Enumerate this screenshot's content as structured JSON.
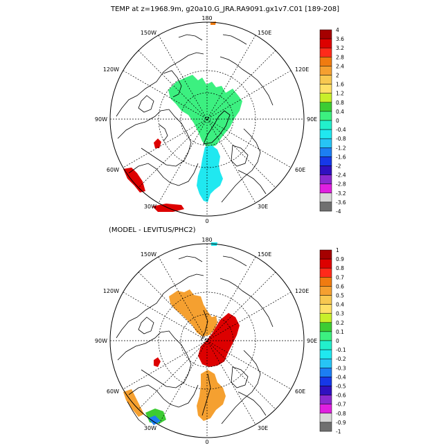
{
  "panels": [
    {
      "title": "TEMP at z=1968.9m, g20a10.G_JRA.RA9091.gx1v7.C01 [189-208]",
      "longitude_labels": {
        "top": "180",
        "bottom": "0",
        "left": "90W",
        "right": "90E",
        "upper_left_outer": "150W",
        "upper_left_inner": "120W",
        "upper_right_outer": "150E",
        "upper_right_inner": "120E",
        "lower_left_inner": "60W",
        "lower_left_outer": "30W",
        "lower_right_inner": "60E",
        "lower_right_outer": "30E"
      },
      "colorbar": {
        "labels": [
          "4",
          "3.6",
          "3.2",
          "2.8",
          "2.4",
          "2",
          "1.6",
          "1.2",
          "0.8",
          "0.4",
          "0",
          "-0.4",
          "-0.8",
          "-1.2",
          "-1.6",
          "-2",
          "-2.4",
          "-2.8",
          "-3.2",
          "-3.6",
          "-4"
        ],
        "colors": [
          "#a50000",
          "#dd0000",
          "#ff2a1a",
          "#f07b10",
          "#f5a030",
          "#f8c850",
          "#ffe066",
          "#c8ef2a",
          "#3ccc33",
          "#3cf080",
          "#22f0cc",
          "#20e8f0",
          "#27c4f5",
          "#1c7ef2",
          "#1638e8",
          "#3010c0",
          "#8c2ad0",
          "#e020e0",
          "#d8d8d8",
          "#707070"
        ]
      },
      "fields": [
        {
          "name": "field-green-arctic",
          "color": "#3cf080"
        },
        {
          "name": "field-cyan-eurasian",
          "color": "#20e8f0"
        },
        {
          "name": "field-red-baffin",
          "color": "#dd0000"
        },
        {
          "name": "field-red-labrador",
          "color": "#dd0000"
        },
        {
          "name": "field-red-atlantic",
          "color": "#dd0000"
        },
        {
          "name": "field-orange-pacific",
          "color": "#f07b10"
        }
      ]
    },
    {
      "title": "(MODEL - LEVITUS/PHC2)",
      "longitude_labels": {
        "top": "180",
        "bottom": "0",
        "left": "90W",
        "right": "90E",
        "upper_left_outer": "150W",
        "upper_left_inner": "120W",
        "upper_right_outer": "150E",
        "upper_right_inner": "120E",
        "lower_left_inner": "60W",
        "lower_left_outer": "30W",
        "lower_right_inner": "60E",
        "lower_right_outer": "30E"
      },
      "colorbar": {
        "labels": [
          "1",
          "0.9",
          "0.8",
          "0.7",
          "0.6",
          "0.5",
          "0.4",
          "0.3",
          "0.2",
          "0.1",
          "0",
          "-0.1",
          "-0.2",
          "-0.3",
          "-0.4",
          "-0.5",
          "-0.6",
          "-0.7",
          "-0.8",
          "-0.9",
          "-1"
        ],
        "colors": [
          "#a50000",
          "#dd0000",
          "#ff2a1a",
          "#f07b10",
          "#f5a030",
          "#f8c850",
          "#ffe066",
          "#c8ef2a",
          "#3ccc33",
          "#3cf080",
          "#22f0cc",
          "#20e8f0",
          "#27c4f5",
          "#1c7ef2",
          "#1638e8",
          "#3010c0",
          "#8c2ad0",
          "#e020e0",
          "#d8d8d8",
          "#707070"
        ]
      },
      "fields": [
        {
          "name": "field-orange-canada-basin",
          "color": "#f5a030"
        },
        {
          "name": "field-red-eurasian-basin",
          "color": "#dd0000"
        },
        {
          "name": "field-orange-fram",
          "color": "#f5a030"
        },
        {
          "name": "field-red-baffin",
          "color": "#dd0000"
        },
        {
          "name": "field-cyan-pacific",
          "color": "#20e8f0"
        }
      ]
    }
  ]
}
